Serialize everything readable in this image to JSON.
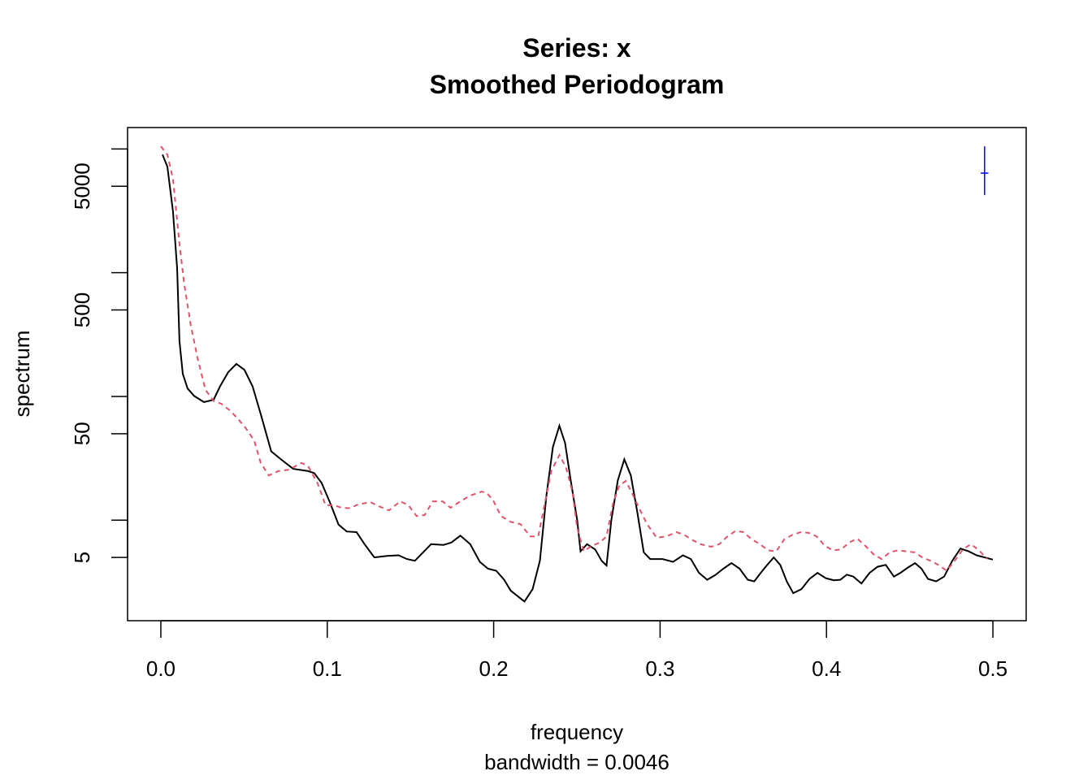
{
  "chart_data": {
    "type": "line",
    "title": "Series: x",
    "subtitle": "Smoothed Periodogram",
    "x_label": "frequency",
    "x_sublabel": "bandwidth = 0.0046",
    "y_label": "spectrum",
    "log_y": true,
    "xlim": [
      -0.02,
      0.52
    ],
    "ylim": [
      1.54,
      14900
    ],
    "xticks": [
      {
        "value": 0,
        "label": "0.0"
      },
      0.1,
      0.2,
      0.3,
      0.4,
      0.5
    ],
    "yticks": [
      5,
      50,
      500,
      5000
    ],
    "yminorticks": [
      10,
      100,
      1000,
      10000
    ],
    "series": [
      {
        "color": "#000000",
        "dash": false,
        "x": [
          0.001,
          0.0039,
          0.0073,
          0.0098,
          0.0112,
          0.0132,
          0.0161,
          0.02,
          0.0259,
          0.0317,
          0.0356,
          0.0405,
          0.0454,
          0.0502,
          0.0551,
          0.06,
          0.0663,
          0.0722,
          0.0795,
          0.0883,
          0.0922,
          0.0966,
          0.1015,
          0.1068,
          0.1117,
          0.1176,
          0.1224,
          0.1283,
          0.136,
          0.1429,
          0.1478,
          0.1527,
          0.1576,
          0.1624,
          0.1698,
          0.1746,
          0.18,
          0.1859,
          0.1917,
          0.1966,
          0.2015,
          0.2063,
          0.2102,
          0.2141,
          0.2185,
          0.2234,
          0.2278,
          0.2317,
          0.2356,
          0.2395,
          0.2429,
          0.2463,
          0.2502,
          0.2522,
          0.2561,
          0.261,
          0.2649,
          0.2678,
          0.2707,
          0.2746,
          0.2785,
          0.2824,
          0.2863,
          0.2902,
          0.2941,
          0.3015,
          0.3078,
          0.3137,
          0.3185,
          0.3234,
          0.3283,
          0.3332,
          0.338,
          0.3429,
          0.3478,
          0.3527,
          0.3566,
          0.3605,
          0.3644,
          0.3683,
          0.3722,
          0.3761,
          0.38,
          0.3849,
          0.3898,
          0.3946,
          0.3995,
          0.4044,
          0.4083,
          0.4122,
          0.4161,
          0.421,
          0.4259,
          0.4307,
          0.4356,
          0.4405,
          0.4444,
          0.4493,
          0.4532,
          0.4571,
          0.461,
          0.4659,
          0.4707,
          0.4756,
          0.4805,
          0.4854,
          0.4902,
          0.4951,
          0.5
        ],
        "values": [
          9000,
          7200,
          3130,
          1090,
          279,
          152,
          116,
          101,
          90,
          94,
          121,
          157,
          183,
          164,
          121,
          72,
          36,
          31,
          26,
          25,
          24,
          20,
          14,
          9.2,
          8.1,
          8.0,
          6.4,
          5,
          5.15,
          5.2,
          4.85,
          4.7,
          5.5,
          6.4,
          6.3,
          6.6,
          7.5,
          6.4,
          4.6,
          4.05,
          3.9,
          3.3,
          2.7,
          2.45,
          2.2,
          2.77,
          4.7,
          15.8,
          39,
          58,
          42,
          21,
          10,
          5.6,
          6.4,
          5.8,
          4.7,
          4.3,
          10,
          21,
          31,
          23,
          11.7,
          5.5,
          4.85,
          4.85,
          4.6,
          5.2,
          4.85,
          3.75,
          3.3,
          3.6,
          4.05,
          4.5,
          4.05,
          3.3,
          3.2,
          3.75,
          4.35,
          5,
          4.35,
          3.2,
          2.57,
          2.77,
          3.35,
          3.75,
          3.4,
          3.27,
          3.3,
          3.63,
          3.5,
          3.08,
          3.75,
          4.2,
          4.35,
          3.5,
          3.75,
          4.17,
          4.5,
          4.05,
          3.35,
          3.2,
          3.5,
          4.7,
          5.9,
          5.6,
          5.2,
          5,
          4.8
        ]
      },
      {
        "color": "#df536b",
        "dash": true,
        "x": [
          0,
          0.0039,
          0.0073,
          0.0112,
          0.0141,
          0.018,
          0.022,
          0.0268,
          0.0317,
          0.0366,
          0.0415,
          0.0463,
          0.0512,
          0.0561,
          0.06,
          0.0649,
          0.0707,
          0.0771,
          0.0844,
          0.0883,
          0.0941,
          0.099,
          0.1039,
          0.1088,
          0.1137,
          0.1185,
          0.1259,
          0.1307,
          0.1371,
          0.1439,
          0.1488,
          0.1537,
          0.1585,
          0.1634,
          0.1693,
          0.1741,
          0.18,
          0.1859,
          0.1927,
          0.1956,
          0.1995,
          0.2044,
          0.2102,
          0.2161,
          0.222,
          0.2268,
          0.2307,
          0.2346,
          0.2395,
          0.2434,
          0.2473,
          0.2502,
          0.2541,
          0.259,
          0.2639,
          0.2678,
          0.2717,
          0.2756,
          0.2795,
          0.2834,
          0.2873,
          0.2922,
          0.298,
          0.3039,
          0.3098,
          0.3146,
          0.3195,
          0.3244,
          0.3307,
          0.3356,
          0.3405,
          0.3454,
          0.3502,
          0.3551,
          0.36,
          0.3649,
          0.3698,
          0.3746,
          0.3795,
          0.3844,
          0.3893,
          0.3941,
          0.399,
          0.4039,
          0.4088,
          0.4137,
          0.4185,
          0.4234,
          0.4283,
          0.4332,
          0.438,
          0.4429,
          0.4478,
          0.4527,
          0.4576,
          0.4624,
          0.4673,
          0.4722,
          0.4771,
          0.4819,
          0.4868,
          0.4917,
          0.4966
        ],
        "values": [
          10500,
          9000,
          5740,
          1710,
          804,
          377,
          206,
          113,
          92,
          87,
          77,
          66,
          55,
          44,
          29,
          23,
          25,
          25.6,
          29,
          27.6,
          20,
          13.2,
          13.2,
          12.6,
          12.5,
          13.4,
          14,
          13,
          12,
          14.2,
          13.2,
          10.8,
          11,
          14.2,
          14.2,
          12.6,
          14.2,
          15.8,
          17,
          16.7,
          14.6,
          10.8,
          9.7,
          9.3,
          7.4,
          7.4,
          13.6,
          25,
          33.6,
          26.8,
          17,
          8.6,
          5.6,
          6.2,
          6.6,
          7.4,
          13.6,
          19.2,
          20.7,
          16.3,
          12.6,
          9.3,
          7.2,
          7.4,
          8,
          7.6,
          6.9,
          6.4,
          6.1,
          6.4,
          7.4,
          8.2,
          8,
          7,
          6.4,
          5.7,
          5.6,
          7,
          7.6,
          8,
          7.9,
          7.4,
          6.2,
          5.7,
          5.8,
          6.6,
          7.1,
          6.2,
          5.3,
          4.85,
          5.5,
          5.7,
          5.6,
          5.5,
          5,
          4.7,
          4.35,
          3.9,
          4.7,
          5.8,
          6.4,
          5.7,
          4.85
        ]
      }
    ],
    "ci_bar": {
      "x": 0.495,
      "y": 6380,
      "lower": 4240,
      "upper": 10500,
      "width": 0.0046,
      "color": "#0000ff"
    }
  }
}
